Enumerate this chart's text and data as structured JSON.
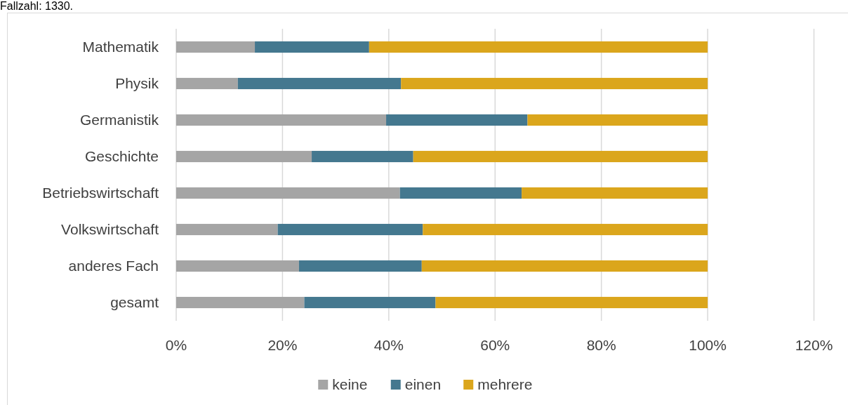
{
  "chart_data": {
    "type": "bar",
    "orientation": "horizontal",
    "stacked": true,
    "annotations": [
      "Fallzahl: 1330."
    ],
    "categories": [
      "Mathematik",
      "Physik",
      "Germanistik",
      "Geschichte",
      "Betriebswirtschaft",
      "Volkswirtschaft",
      "anderes Fach",
      "gesamt"
    ],
    "series": [
      {
        "name": "keine",
        "color": "#a5a5a5",
        "values": [
          14.8,
          11.6,
          39.5,
          25.5,
          42.1,
          19.1,
          23.1,
          24.1
        ]
      },
      {
        "name": "einen",
        "color": "#44788f",
        "values": [
          21.5,
          30.7,
          26.6,
          19.1,
          22.9,
          27.3,
          23.1,
          24.7
        ]
      },
      {
        "name": "mehrere",
        "color": "#dba61c",
        "values": [
          63.7,
          57.7,
          33.9,
          55.4,
          35.0,
          53.6,
          53.8,
          51.2
        ]
      }
    ],
    "xlim": [
      0,
      120
    ],
    "xticks": [
      {
        "value": 0,
        "label": "0%"
      },
      {
        "value": 20,
        "label": "20%"
      },
      {
        "value": 40,
        "label": "40%"
      },
      {
        "value": 60,
        "label": "60%"
      },
      {
        "value": 80,
        "label": "80%"
      },
      {
        "value": 100,
        "label": "100%"
      },
      {
        "value": 120,
        "label": "120%"
      }
    ],
    "grid": "x",
    "legend": "bottom"
  }
}
